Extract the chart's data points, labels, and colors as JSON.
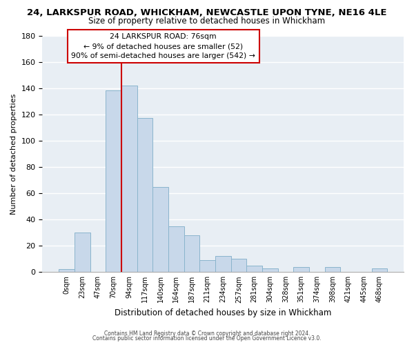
{
  "title": "24, LARKSPUR ROAD, WHICKHAM, NEWCASTLE UPON TYNE, NE16 4LE",
  "subtitle": "Size of property relative to detached houses in Whickham",
  "xlabel": "Distribution of detached houses by size in Whickham",
  "ylabel": "Number of detached properties",
  "bar_color": "#c8d8ea",
  "bar_edgecolor": "#8ab4cc",
  "bin_labels": [
    "0sqm",
    "23sqm",
    "47sqm",
    "70sqm",
    "94sqm",
    "117sqm",
    "140sqm",
    "164sqm",
    "187sqm",
    "211sqm",
    "234sqm",
    "257sqm",
    "281sqm",
    "304sqm",
    "328sqm",
    "351sqm",
    "374sqm",
    "398sqm",
    "421sqm",
    "445sqm",
    "468sqm"
  ],
  "bar_heights": [
    2,
    30,
    0,
    138,
    142,
    117,
    65,
    35,
    28,
    9,
    12,
    10,
    5,
    3,
    0,
    4,
    0,
    4,
    0,
    0,
    3
  ],
  "vline_x_index": 3.5,
  "vline_color": "#cc0000",
  "ylim": [
    0,
    180
  ],
  "yticks": [
    0,
    20,
    40,
    60,
    80,
    100,
    120,
    140,
    160,
    180
  ],
  "annotation_title": "24 LARKSPUR ROAD: 76sqm",
  "annotation_line1": "← 9% of detached houses are smaller (52)",
  "annotation_line2": "90% of semi-detached houses are larger (542) →",
  "annotation_box_facecolor": "#ffffff",
  "annotation_box_edgecolor": "#cc0000",
  "footer1": "Contains HM Land Registry data © Crown copyright and database right 2024.",
  "footer2": "Contains public sector information licensed under the Open Government Licence v3.0.",
  "background_color": "#ffffff",
  "plot_background_color": "#e8eef4",
  "grid_color": "#ffffff"
}
